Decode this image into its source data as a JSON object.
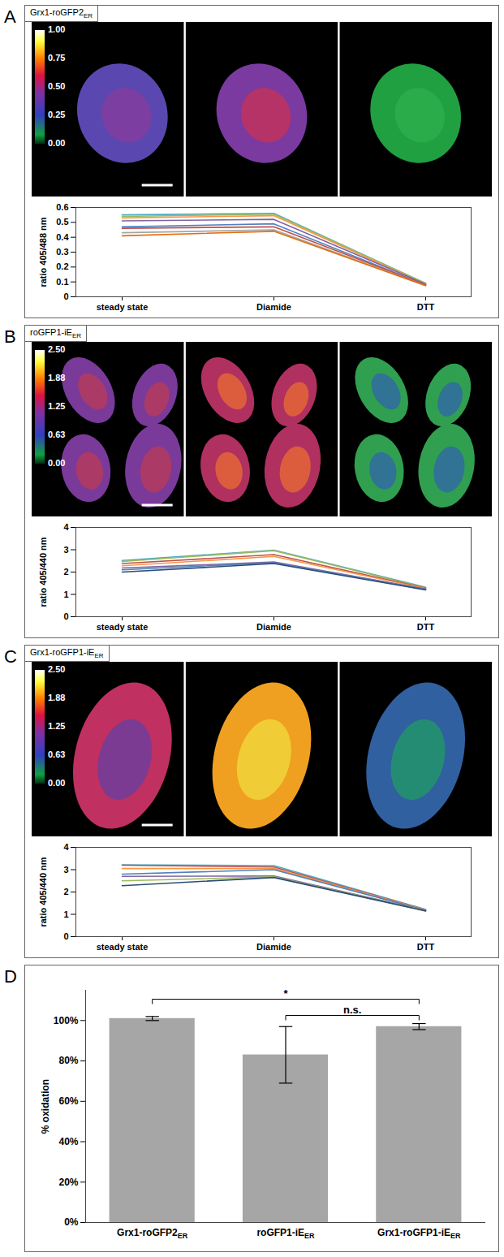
{
  "chart_data": [
    {
      "panel": "A",
      "type": "line",
      "title": "Grx1-roGFP2",
      "title_subscript": "ER",
      "categories": [
        "steady state",
        "Diamide",
        "DTT"
      ],
      "series": [
        {
          "color": "#4bacc6",
          "values": [
            0.55,
            0.56,
            0.09
          ]
        },
        {
          "color": "#9bbb59",
          "values": [
            0.54,
            0.555,
            0.09
          ]
        },
        {
          "color": "#f79646",
          "values": [
            0.53,
            0.545,
            0.085
          ]
        },
        {
          "color": "#8064a2",
          "values": [
            0.51,
            0.52,
            0.085
          ]
        },
        {
          "color": "#4f81bd",
          "values": [
            0.47,
            0.49,
            0.08
          ]
        },
        {
          "color": "#c0504d",
          "values": [
            0.46,
            0.47,
            0.08
          ]
        },
        {
          "color": "#a5a5a5",
          "values": [
            0.43,
            0.45,
            0.075
          ]
        },
        {
          "color": "#e46c0a",
          "values": [
            0.41,
            0.44,
            0.075
          ]
        }
      ],
      "ylabel": "ratio 405/488 nm",
      "ylim": [
        0,
        0.6
      ],
      "yticks": [
        0,
        0.1,
        0.2,
        0.3,
        0.4,
        0.5,
        0.6
      ],
      "colorbar": {
        "range": [
          0,
          1
        ],
        "ticks": [
          {
            "value": 0,
            "label": "0.00"
          },
          {
            "value": 0.25,
            "label": "0.25"
          },
          {
            "value": 0.5,
            "label": "0.50"
          },
          {
            "value": 0.75,
            "label": "0.75"
          },
          {
            "value": 1,
            "label": "1.00"
          }
        ]
      }
    },
    {
      "panel": "B",
      "type": "line",
      "title": "roGFP1-iE",
      "title_subscript": "ER",
      "categories": [
        "steady state",
        "Diamide",
        "DTT"
      ],
      "series": [
        {
          "color": "#4bacc6",
          "values": [
            2.52,
            2.98,
            1.32
          ]
        },
        {
          "color": "#9bbb59",
          "values": [
            2.47,
            2.96,
            1.3
          ]
        },
        {
          "color": "#c0504d",
          "values": [
            2.38,
            2.78,
            1.28
          ]
        },
        {
          "color": "#f79646",
          "values": [
            2.28,
            2.7,
            1.26
          ]
        },
        {
          "color": "#8064a2",
          "values": [
            2.18,
            2.45,
            1.24
          ]
        },
        {
          "color": "#4f81bd",
          "values": [
            2.1,
            2.42,
            1.22
          ]
        },
        {
          "color": "#2c4d75",
          "values": [
            2.0,
            2.38,
            1.2
          ]
        }
      ],
      "ylabel": "ratio 405/440 nm",
      "ylim": [
        0,
        4
      ],
      "yticks": [
        0,
        1,
        2,
        3,
        4
      ],
      "colorbar": {
        "range": [
          0,
          2.5
        ],
        "ticks": [
          {
            "value": 0,
            "label": "0.00"
          },
          {
            "value": 0.63,
            "label": "0.63"
          },
          {
            "value": 1.25,
            "label": "1.25"
          },
          {
            "value": 1.88,
            "label": "1.88"
          },
          {
            "value": 2.5,
            "label": "2.50"
          }
        ]
      }
    },
    {
      "panel": "C",
      "type": "line",
      "title": "Grx1-roGFP1-iE",
      "title_subscript": "ER",
      "categories": [
        "steady state",
        "Diamide",
        "DTT"
      ],
      "series": [
        {
          "color": "#4bacc6",
          "values": [
            3.22,
            3.18,
            1.22
          ]
        },
        {
          "color": "#c0504d",
          "values": [
            3.2,
            3.12,
            1.2
          ]
        },
        {
          "color": "#f79646",
          "values": [
            3.05,
            3.05,
            1.2
          ]
        },
        {
          "color": "#4f81bd",
          "values": [
            2.8,
            3.0,
            1.18
          ]
        },
        {
          "color": "#8064a2",
          "values": [
            2.7,
            2.72,
            1.18
          ]
        },
        {
          "color": "#9bbb59",
          "values": [
            2.5,
            2.68,
            1.16
          ]
        },
        {
          "color": "#2c4d75",
          "values": [
            2.28,
            2.65,
            1.15
          ]
        }
      ],
      "ylabel": "ratio 405/440 nm",
      "ylim": [
        0,
        4
      ],
      "yticks": [
        0,
        1,
        2,
        3,
        4
      ],
      "colorbar": {
        "range": [
          0,
          2.5
        ],
        "ticks": [
          {
            "value": 0,
            "label": "0.00"
          },
          {
            "value": 0.63,
            "label": "0.63"
          },
          {
            "value": 1.25,
            "label": "1.25"
          },
          {
            "value": 1.88,
            "label": "1.88"
          },
          {
            "value": 2.5,
            "label": "2.50"
          }
        ]
      }
    },
    {
      "panel": "D",
      "type": "bar",
      "categories": [
        "Grx1-roGFP2",
        "roGFP1-iE",
        "Grx1-roGFP1-iE"
      ],
      "category_subscripts": [
        "ER",
        "ER",
        "ER"
      ],
      "values": [
        101,
        83,
        97
      ],
      "errors": [
        1,
        14,
        1.5
      ],
      "color": "#a6a6a6",
      "ylabel": "% oxidation",
      "ylim": [
        0,
        115
      ],
      "yticks": [
        {
          "value": 0,
          "label": "0%"
        },
        {
          "value": 20,
          "label": "20%"
        },
        {
          "value": 40,
          "label": "40%"
        },
        {
          "value": 60,
          "label": "60%"
        },
        {
          "value": 80,
          "label": "80%"
        },
        {
          "value": 100,
          "label": "100%"
        }
      ],
      "annotations": [
        {
          "from": 0,
          "to": 2,
          "label": "*"
        },
        {
          "from": 1,
          "to": 2,
          "label": "n.s."
        }
      ]
    }
  ]
}
